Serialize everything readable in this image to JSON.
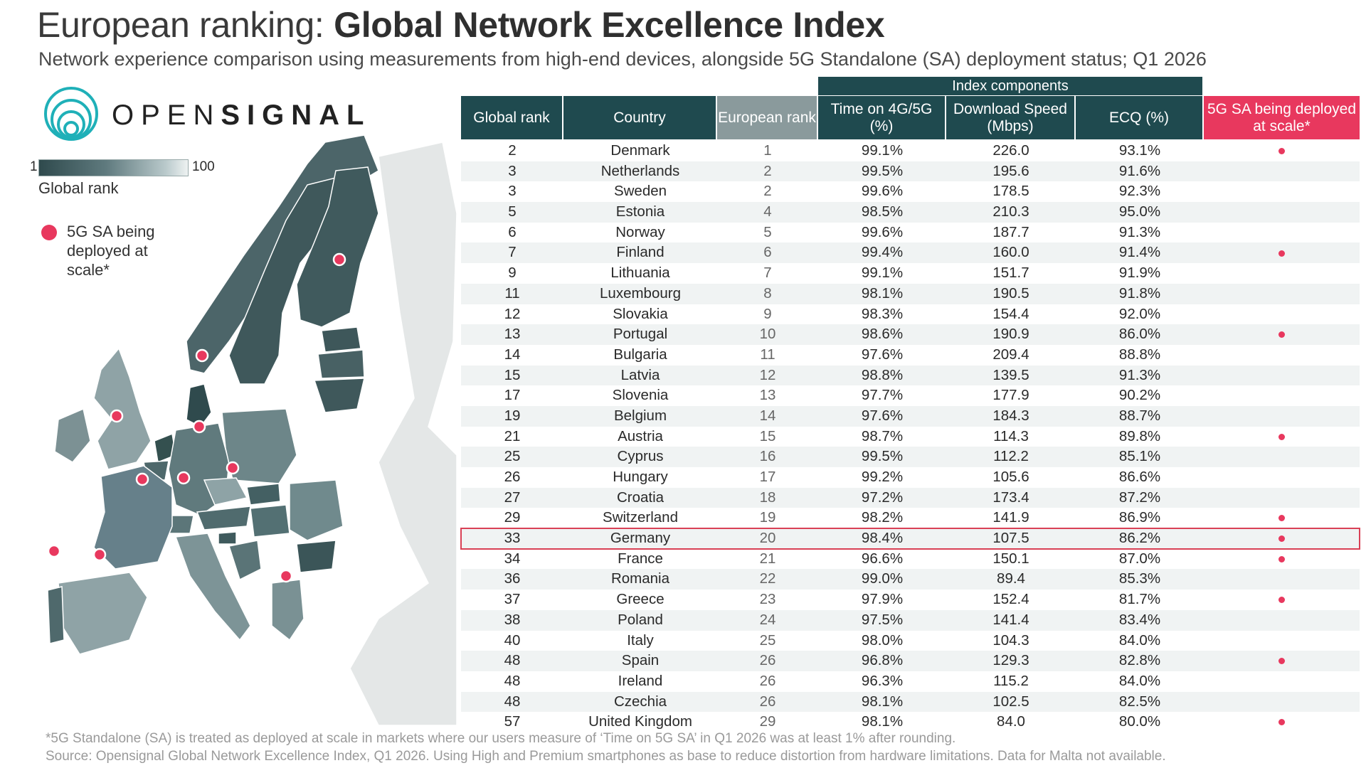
{
  "header": {
    "title_prefix": "European ranking: ",
    "title_bold": "Global Network Excellence Index",
    "subtitle": "Network experience comparison using measurements from high-end devices, alongside 5G Standalone (SA) deployment status; Q1 2026"
  },
  "logo": {
    "text_light": "OPEN",
    "text_bold": "SIGNAL"
  },
  "legend": {
    "gradient_min": "1",
    "gradient_max": "100",
    "gradient_label": "Global rank",
    "dot_label": "5G SA being deployed at scale*"
  },
  "colors": {
    "accent": "#e8385e",
    "header": "#1f4a4f",
    "header_grey": "#8a9a9c",
    "map_dark": "#3a5558",
    "map_light": "#b9c9cb"
  },
  "table": {
    "group_header": "Index components",
    "columns": [
      "Global rank",
      "Country",
      "European rank",
      "Time on 4G/5G (%)",
      "Download Speed (Mbps)",
      "ECQ (%)",
      "5G SA being deployed at scale*"
    ]
  },
  "chart_data": {
    "type": "table",
    "rows": [
      {
        "global": "2",
        "country": "Denmark",
        "eu": "1",
        "time": "99.1%",
        "speed": "226.0",
        "ecq": "93.1%",
        "sa": true
      },
      {
        "global": "3",
        "country": "Netherlands",
        "eu": "2",
        "time": "99.5%",
        "speed": "195.6",
        "ecq": "91.6%",
        "sa": false
      },
      {
        "global": "3",
        "country": "Sweden",
        "eu": "2",
        "time": "99.6%",
        "speed": "178.5",
        "ecq": "92.3%",
        "sa": false
      },
      {
        "global": "5",
        "country": "Estonia",
        "eu": "4",
        "time": "98.5%",
        "speed": "210.3",
        "ecq": "95.0%",
        "sa": false
      },
      {
        "global": "6",
        "country": "Norway",
        "eu": "5",
        "time": "99.6%",
        "speed": "187.7",
        "ecq": "91.3%",
        "sa": false
      },
      {
        "global": "7",
        "country": "Finland",
        "eu": "6",
        "time": "99.4%",
        "speed": "160.0",
        "ecq": "91.4%",
        "sa": true
      },
      {
        "global": "9",
        "country": "Lithuania",
        "eu": "7",
        "time": "99.1%",
        "speed": "151.7",
        "ecq": "91.9%",
        "sa": false
      },
      {
        "global": "11",
        "country": "Luxembourg",
        "eu": "8",
        "time": "98.1%",
        "speed": "190.5",
        "ecq": "91.8%",
        "sa": false
      },
      {
        "global": "12",
        "country": "Slovakia",
        "eu": "9",
        "time": "98.3%",
        "speed": "154.4",
        "ecq": "92.0%",
        "sa": false
      },
      {
        "global": "13",
        "country": "Portugal",
        "eu": "10",
        "time": "98.6%",
        "speed": "190.9",
        "ecq": "86.0%",
        "sa": true
      },
      {
        "global": "14",
        "country": "Bulgaria",
        "eu": "11",
        "time": "97.6%",
        "speed": "209.4",
        "ecq": "88.8%",
        "sa": false
      },
      {
        "global": "15",
        "country": "Latvia",
        "eu": "12",
        "time": "98.8%",
        "speed": "139.5",
        "ecq": "91.3%",
        "sa": false
      },
      {
        "global": "17",
        "country": "Slovenia",
        "eu": "13",
        "time": "97.7%",
        "speed": "177.9",
        "ecq": "90.2%",
        "sa": false
      },
      {
        "global": "19",
        "country": "Belgium",
        "eu": "14",
        "time": "97.6%",
        "speed": "184.3",
        "ecq": "88.7%",
        "sa": false
      },
      {
        "global": "21",
        "country": "Austria",
        "eu": "15",
        "time": "98.7%",
        "speed": "114.3",
        "ecq": "89.8%",
        "sa": true
      },
      {
        "global": "25",
        "country": "Cyprus",
        "eu": "16",
        "time": "99.5%",
        "speed": "112.2",
        "ecq": "85.1%",
        "sa": false
      },
      {
        "global": "26",
        "country": "Hungary",
        "eu": "17",
        "time": "99.2%",
        "speed": "105.6",
        "ecq": "86.6%",
        "sa": false
      },
      {
        "global": "27",
        "country": "Croatia",
        "eu": "18",
        "time": "97.2%",
        "speed": "173.4",
        "ecq": "87.2%",
        "sa": false
      },
      {
        "global": "29",
        "country": "Switzerland",
        "eu": "19",
        "time": "98.2%",
        "speed": "141.9",
        "ecq": "86.9%",
        "sa": true
      },
      {
        "global": "33",
        "country": "Germany",
        "eu": "20",
        "time": "98.4%",
        "speed": "107.5",
        "ecq": "86.2%",
        "sa": true,
        "highlight": true
      },
      {
        "global": "34",
        "country": "France",
        "eu": "21",
        "time": "96.6%",
        "speed": "150.1",
        "ecq": "87.0%",
        "sa": true
      },
      {
        "global": "36",
        "country": "Romania",
        "eu": "22",
        "time": "99.0%",
        "speed": "89.4",
        "ecq": "85.3%",
        "sa": false
      },
      {
        "global": "37",
        "country": "Greece",
        "eu": "23",
        "time": "97.9%",
        "speed": "152.4",
        "ecq": "81.7%",
        "sa": true
      },
      {
        "global": "38",
        "country": "Poland",
        "eu": "24",
        "time": "97.5%",
        "speed": "141.4",
        "ecq": "83.4%",
        "sa": false
      },
      {
        "global": "40",
        "country": "Italy",
        "eu": "25",
        "time": "98.0%",
        "speed": "104.3",
        "ecq": "84.0%",
        "sa": false
      },
      {
        "global": "48",
        "country": "Spain",
        "eu": "26",
        "time": "96.8%",
        "speed": "129.3",
        "ecq": "82.8%",
        "sa": true
      },
      {
        "global": "48",
        "country": "Ireland",
        "eu": "26",
        "time": "96.3%",
        "speed": "115.2",
        "ecq": "84.0%",
        "sa": false
      },
      {
        "global": "48",
        "country": "Czechia",
        "eu": "26",
        "time": "98.1%",
        "speed": "102.5",
        "ecq": "82.5%",
        "sa": false
      },
      {
        "global": "57",
        "country": "United Kingdom",
        "eu": "29",
        "time": "98.1%",
        "speed": "84.0",
        "ecq": "80.0%",
        "sa": true
      }
    ]
  },
  "footnotes": {
    "note": "*5G Standalone (SA) is treated as deployed at scale in markets where our users measure of ‘Time on 5G SA’ in Q1 2026 was at least 1% after rounding.",
    "source": "Source: Opensignal Global Network Excellence Index, Q1 2026. Using High and Premium smartphones as base to reduce distortion from hardware limitations. Data for Malta not available."
  }
}
